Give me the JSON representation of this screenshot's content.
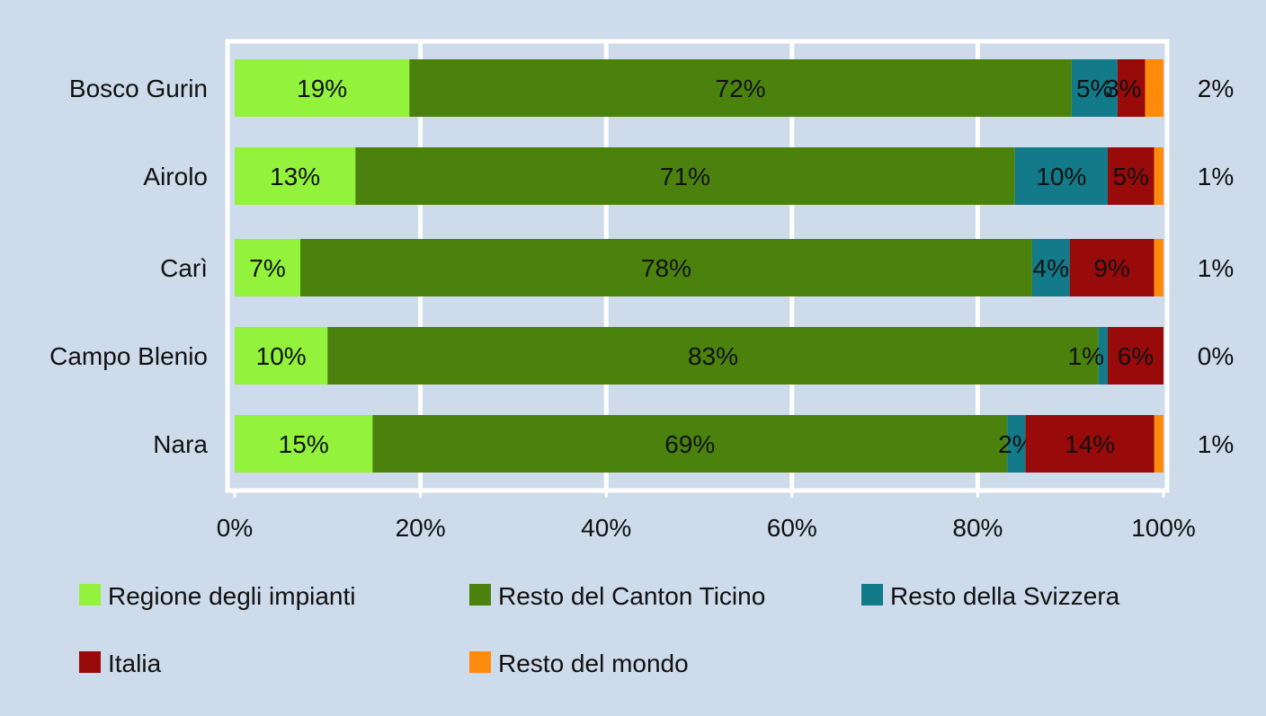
{
  "chart_data": {
    "type": "bar",
    "orientation": "horizontal",
    "stacked": "percent",
    "categories": [
      "Bosco Gurin",
      "Airolo",
      "Carì",
      "Campo Blenio",
      "Nara"
    ],
    "series": [
      {
        "name": "Regione degli impianti",
        "color": "#92f23c",
        "values": [
          19,
          13,
          7,
          10,
          15
        ],
        "labels": [
          "19%",
          "13%",
          "7%",
          "10%",
          "15%"
        ]
      },
      {
        "name": "Resto del Canton Ticino",
        "color": "#4b820e",
        "values": [
          72,
          71,
          78,
          83,
          69
        ],
        "labels": [
          "72%",
          "71%",
          "78%",
          "83%",
          "69%"
        ]
      },
      {
        "name": "Resto della Svizzera",
        "color": "#127a88",
        "values": [
          5,
          10,
          4,
          1,
          2
        ],
        "labels": [
          "5%",
          "10%",
          "4%",
          "1%",
          "2%"
        ]
      },
      {
        "name": "Italia",
        "color": "#990a0a",
        "values": [
          3,
          5,
          9,
          6,
          14
        ],
        "labels": [
          "3%",
          "5%",
          "9%",
          "6%",
          "14%"
        ]
      },
      {
        "name": "Resto del mondo",
        "color": "#ff8a0b",
        "values": [
          2,
          1,
          1,
          0,
          1
        ],
        "labels": [
          "2%",
          "1%",
          "1%",
          "0%",
          "1%"
        ]
      }
    ],
    "x_ticks": [
      "0%",
      "20%",
      "40%",
      "60%",
      "80%",
      "100%"
    ],
    "xlim": [
      0,
      100
    ],
    "grid": true,
    "legend_placement": "bottom"
  }
}
